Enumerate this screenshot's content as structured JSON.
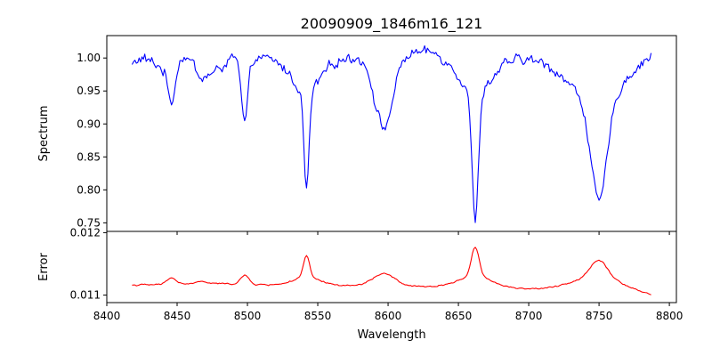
{
  "chart_data": [
    {
      "type": "line",
      "panel": "top",
      "title": "20090909_1846m16_121",
      "xlabel": "",
      "ylabel": "Spectrum",
      "xlim": [
        8400,
        8805
      ],
      "ylim": [
        0.737,
        1.034
      ],
      "x_ticks": [
        8400,
        8450,
        8500,
        8550,
        8600,
        8650,
        8700,
        8750,
        8800
      ],
      "x_tick_labels_visible": false,
      "y_ticks": [
        0.75,
        0.8,
        0.85,
        0.9,
        0.95,
        1.0
      ],
      "y_tick_labels": [
        "0.75",
        "0.80",
        "0.85",
        "0.90",
        "0.95",
        "1.00"
      ],
      "grid": false,
      "series": [
        {
          "color": "#0000ff",
          "x_range": [
            8418,
            8787
          ],
          "samples": 370,
          "noise": 0.008,
          "baseline": [
            [
              8418,
              0.99
            ],
            [
              8425,
              1.0
            ],
            [
              8440,
              0.985
            ],
            [
              8455,
              1.003
            ],
            [
              8475,
              0.975
            ],
            [
              8490,
              1.002
            ],
            [
              8520,
              0.998
            ],
            [
              8570,
              1.0
            ],
            [
              8630,
              1.01
            ],
            [
              8700,
              0.998
            ],
            [
              8730,
              0.985
            ],
            [
              8780,
              1.0
            ],
            [
              8787,
              1.01
            ]
          ],
          "absorption_lines": [
            {
              "center": 8446,
              "depth": 0.058,
              "width": 2.6
            },
            {
              "center": 8467,
              "depth": 0.018,
              "width": 3.0
            },
            {
              "center": 8498,
              "depth": 0.1,
              "width": 2.4
            },
            {
              "center": 8542,
              "depth": 0.15,
              "width": 1.8
            },
            {
              "center": 8542,
              "depth": 0.05,
              "width": 10.0
            },
            {
              "center": 8597,
              "depth": 0.11,
              "width": 6.5
            },
            {
              "center": 8662,
              "depth": 0.2,
              "width": 2.2
            },
            {
              "center": 8662,
              "depth": 0.055,
              "width": 12.0
            },
            {
              "center": 8750,
              "depth": 0.15,
              "width": 5.5
            },
            {
              "center": 8750,
              "depth": 0.06,
              "width": 16.0
            }
          ]
        }
      ]
    },
    {
      "type": "line",
      "panel": "bottom",
      "title": "",
      "xlabel": "Wavelength",
      "ylabel": "Error",
      "xlim": [
        8400,
        8805
      ],
      "ylim": [
        0.01088,
        0.01202
      ],
      "x_ticks": [
        8400,
        8450,
        8500,
        8550,
        8600,
        8650,
        8700,
        8750,
        8800
      ],
      "x_tick_labels": [
        "8400",
        "8450",
        "8500",
        "8550",
        "8600",
        "8650",
        "8700",
        "8750",
        "8800"
      ],
      "y_ticks": [
        0.011,
        0.012
      ],
      "y_tick_labels": [
        "0.011",
        "0.012"
      ],
      "grid": false,
      "series": [
        {
          "color": "#ff0000",
          "x_range": [
            8418,
            8787
          ],
          "samples": 370,
          "noise": 1.2e-05,
          "baseline": [
            [
              8418,
              0.01116
            ],
            [
              8440,
              0.01117
            ],
            [
              8470,
              0.01119
            ],
            [
              8520,
              0.01116
            ],
            [
              8570,
              0.01115
            ],
            [
              8630,
              0.01113
            ],
            [
              8680,
              0.0111
            ],
            [
              8710,
              0.0111
            ],
            [
              8740,
              0.01114
            ],
            [
              8770,
              0.01108
            ],
            [
              8787,
              0.011
            ]
          ],
          "emission_lines": [
            {
              "center": 8446,
              "height": 0.00011,
              "width": 3.0
            },
            {
              "center": 8467,
              "height": 3e-05,
              "width": 3.0
            },
            {
              "center": 8498,
              "height": 0.00014,
              "width": 3.0
            },
            {
              "center": 8542,
              "height": 0.00035,
              "width": 2.2
            },
            {
              "center": 8542,
              "height": 0.00012,
              "width": 10.0
            },
            {
              "center": 8597,
              "height": 0.0002,
              "width": 8.0
            },
            {
              "center": 8662,
              "height": 0.00048,
              "width": 2.8
            },
            {
              "center": 8662,
              "height": 0.00018,
              "width": 13.0
            },
            {
              "center": 8750,
              "height": 0.00028,
              "width": 6.0
            },
            {
              "center": 8750,
              "height": 0.00016,
              "width": 16.0
            }
          ]
        }
      ]
    }
  ]
}
